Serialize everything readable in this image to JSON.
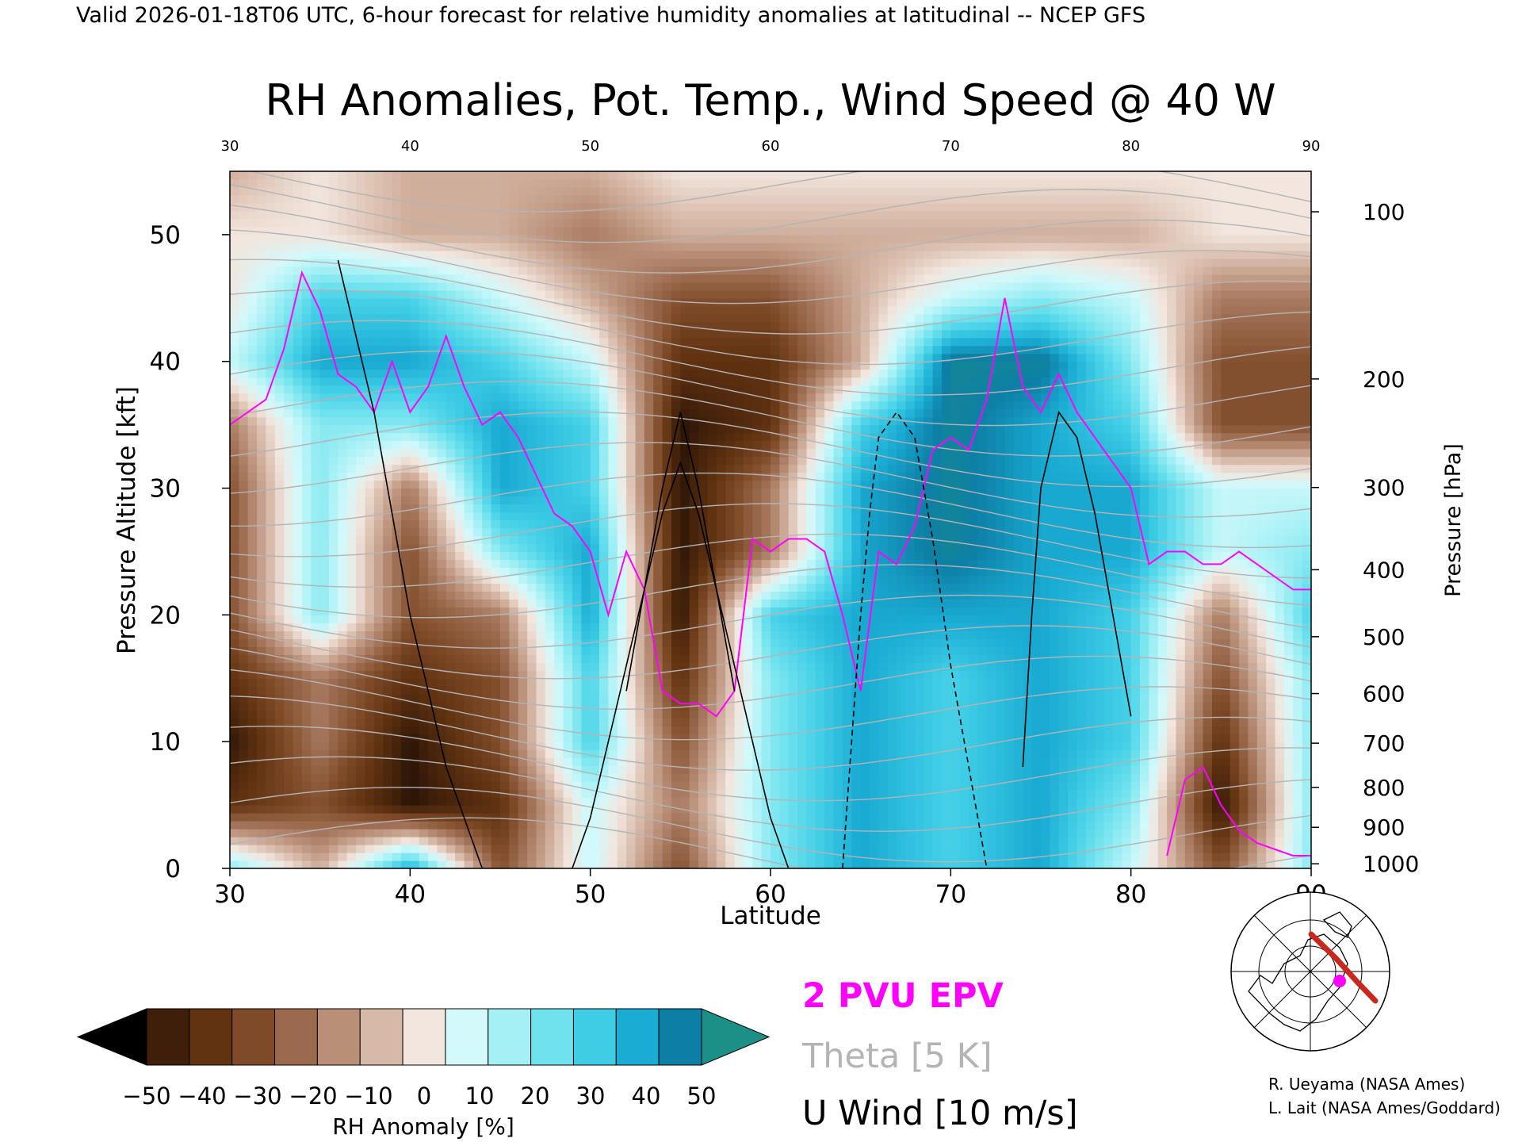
{
  "header": "Valid 2026-01-18T06 UTC, 6-hour forecast for relative humidity anomalies at latitudinal -- NCEP GFS",
  "chart_data": {
    "type": "heatmap",
    "title": "RH Anomalies, Pot. Temp., Wind Speed @ 40 W",
    "xlabel": "Latitude",
    "ylabel": "Pressure Altitude [kft]",
    "ylabel_right": "Pressure [hPa]",
    "xlim": [
      30,
      90
    ],
    "ylim": [
      0,
      55
    ],
    "x_ticks": [
      "30",
      "40",
      "50",
      "60",
      "70",
      "80",
      "90"
    ],
    "x_ticks_top": [
      "30",
      "40",
      "50",
      "60",
      "70",
      "80",
      "90"
    ],
    "y_ticks": [
      {
        "v": 0,
        "label": "0"
      },
      {
        "v": 10,
        "label": "10"
      },
      {
        "v": 20,
        "label": "20"
      },
      {
        "v": 30,
        "label": "30"
      },
      {
        "v": 40,
        "label": "40"
      },
      {
        "v": 50,
        "label": "50"
      }
    ],
    "pressure_ticks": [
      {
        "p": 100,
        "label": "100"
      },
      {
        "p": 200,
        "label": "200"
      },
      {
        "p": 300,
        "label": "300"
      },
      {
        "p": 400,
        "label": "400"
      },
      {
        "p": 500,
        "label": "500"
      },
      {
        "p": 600,
        "label": "600"
      },
      {
        "p": 700,
        "label": "700"
      },
      {
        "p": 800,
        "label": "800"
      },
      {
        "p": 900,
        "label": "900"
      },
      {
        "p": 1000,
        "label": "1000"
      }
    ],
    "rh_field": {
      "unit": "%",
      "lat": [
        30,
        35,
        40,
        45,
        50,
        55,
        60,
        65,
        70,
        75,
        80,
        85,
        90
      ],
      "alt": [
        0,
        5,
        10,
        15,
        20,
        25,
        30,
        35,
        40,
        45,
        50,
        55
      ],
      "values": [
        [
          20,
          -10,
          40,
          -30,
          10,
          -30,
          20,
          40,
          30,
          40,
          10,
          -30,
          20
        ],
        [
          -40,
          -30,
          -50,
          -40,
          10,
          -20,
          20,
          40,
          30,
          40,
          20,
          -50,
          20
        ],
        [
          -50,
          -20,
          -50,
          -30,
          30,
          -30,
          20,
          40,
          30,
          40,
          30,
          -40,
          20
        ],
        [
          -40,
          -20,
          -40,
          -30,
          30,
          -40,
          20,
          40,
          30,
          40,
          30,
          -30,
          20
        ],
        [
          -30,
          20,
          -30,
          -20,
          40,
          -50,
          30,
          40,
          40,
          40,
          30,
          -20,
          30
        ],
        [
          -30,
          20,
          -30,
          20,
          40,
          -50,
          -20,
          40,
          50,
          40,
          40,
          10,
          20
        ],
        [
          -30,
          20,
          -20,
          40,
          30,
          -50,
          -20,
          40,
          50,
          40,
          40,
          10,
          10
        ],
        [
          -20,
          20,
          20,
          40,
          30,
          -50,
          -40,
          30,
          50,
          40,
          30,
          -30,
          -30
        ],
        [
          10,
          40,
          40,
          30,
          10,
          -40,
          -40,
          -10,
          50,
          50,
          20,
          -30,
          -30
        ],
        [
          0,
          30,
          30,
          10,
          -10,
          -30,
          -30,
          -10,
          10,
          20,
          10,
          -20,
          -20
        ],
        [
          0,
          0,
          -10,
          -10,
          -20,
          -10,
          -10,
          -10,
          -10,
          -10,
          -10,
          0,
          0
        ],
        [
          -10,
          0,
          -10,
          -10,
          -10,
          0,
          0,
          0,
          0,
          0,
          0,
          0,
          0
        ]
      ]
    },
    "colorbar": {
      "label": "RH Anomaly [%]",
      "tick_labels": [
        "−50",
        "−40",
        "−30",
        "−20",
        "−10",
        "0",
        "10",
        "20",
        "30",
        "40",
        "50"
      ],
      "colors": [
        "#000000",
        "#3f1f0a",
        "#613311",
        "#7e4a28",
        "#9b6a4d",
        "#b98f78",
        "#d7b9a8",
        "#f2e6de",
        "#d3f9fb",
        "#a4f0f5",
        "#6fe2ee",
        "#3fcde6",
        "#1aacd3",
        "#0d7fa6",
        "#1c8f86"
      ]
    },
    "legend": [
      {
        "label": "2 PVU EPV",
        "color": "#ff00ff"
      },
      {
        "label": "Theta [5 K]",
        "color": "#b4b4b4"
      },
      {
        "label": "U Wind [10 m/s]",
        "color": "#000000"
      }
    ],
    "series": [
      {
        "name": "2 PVU EPV",
        "type": "line",
        "points": [
          [
            30,
            35
          ],
          [
            31,
            36
          ],
          [
            32,
            37
          ],
          [
            33,
            41
          ],
          [
            34,
            47
          ],
          [
            35,
            44
          ],
          [
            36,
            39
          ],
          [
            37,
            38
          ],
          [
            38,
            36
          ],
          [
            39,
            40
          ],
          [
            40,
            36
          ],
          [
            41,
            38
          ],
          [
            42,
            42
          ],
          [
            43,
            38
          ],
          [
            44,
            35
          ],
          [
            45,
            36
          ],
          [
            46,
            34
          ],
          [
            47,
            31
          ],
          [
            48,
            28
          ],
          [
            49,
            27
          ],
          [
            50,
            25
          ],
          [
            51,
            20
          ],
          [
            52,
            25
          ],
          [
            53,
            22
          ],
          [
            54,
            14
          ],
          [
            55,
            13
          ],
          [
            56,
            13
          ],
          [
            57,
            12
          ],
          [
            58,
            14
          ],
          [
            59,
            26
          ],
          [
            60,
            25
          ],
          [
            61,
            26
          ],
          [
            62,
            26
          ],
          [
            63,
            25
          ],
          [
            64,
            20
          ],
          [
            65,
            14
          ],
          [
            66,
            25
          ],
          [
            67,
            24
          ],
          [
            68,
            27
          ],
          [
            69,
            33
          ],
          [
            70,
            34
          ],
          [
            71,
            33
          ],
          [
            72,
            37
          ],
          [
            73,
            45
          ],
          [
            74,
            38
          ],
          [
            75,
            36
          ],
          [
            76,
            39
          ],
          [
            77,
            36
          ],
          [
            78,
            34
          ],
          [
            79,
            32
          ],
          [
            80,
            30
          ],
          [
            81,
            24
          ],
          [
            82,
            25
          ],
          [
            83,
            25
          ],
          [
            84,
            24
          ],
          [
            85,
            24
          ],
          [
            86,
            25
          ],
          [
            87,
            24
          ],
          [
            88,
            23
          ],
          [
            89,
            22
          ],
          [
            90,
            22
          ]
        ]
      },
      {
        "name": "2 PVU EPV (low)",
        "type": "line",
        "points": [
          [
            82,
            1
          ],
          [
            83,
            7
          ],
          [
            84,
            8
          ],
          [
            85,
            5
          ],
          [
            86,
            3
          ],
          [
            87,
            2
          ],
          [
            88,
            1.5
          ],
          [
            89,
            1
          ],
          [
            90,
            1
          ]
        ]
      },
      {
        "name": "U Wind 10 m/s",
        "type": "line",
        "points": [
          [
            36,
            48
          ],
          [
            37,
            42
          ],
          [
            38,
            36
          ],
          [
            39,
            28
          ],
          [
            40,
            20
          ],
          [
            41,
            14
          ],
          [
            42,
            8
          ],
          [
            43,
            4
          ],
          [
            44,
            0
          ]
        ]
      },
      {
        "name": "U Wind 30 m/s",
        "type": "line",
        "points": [
          [
            49,
            0
          ],
          [
            50,
            4
          ],
          [
            51,
            10
          ],
          [
            52,
            16
          ],
          [
            53,
            22
          ],
          [
            54,
            28
          ],
          [
            55,
            32
          ],
          [
            56,
            28
          ],
          [
            57,
            22
          ],
          [
            58,
            16
          ],
          [
            59,
            10
          ],
          [
            60,
            4
          ],
          [
            61,
            0
          ]
        ]
      },
      {
        "name": "U Wind 50 m/s",
        "type": "line",
        "points": [
          [
            52,
            14
          ],
          [
            53,
            22
          ],
          [
            54,
            30
          ],
          [
            55,
            36
          ],
          [
            56,
            30
          ],
          [
            57,
            22
          ],
          [
            58,
            14
          ]
        ]
      },
      {
        "name": "U Wind -10 m/s",
        "type": "line",
        "points": [
          [
            64,
            0
          ],
          [
            64.5,
            10
          ],
          [
            65,
            20
          ],
          [
            65.5,
            28
          ],
          [
            66,
            34
          ],
          [
            67,
            36
          ],
          [
            68,
            34
          ],
          [
            69,
            26
          ],
          [
            70,
            16
          ],
          [
            71,
            8
          ],
          [
            72,
            0
          ]
        ]
      },
      {
        "name": "U Wind 30 m/s (north)",
        "type": "line",
        "points": [
          [
            74,
            8
          ],
          [
            74.5,
            20
          ],
          [
            75,
            30
          ],
          [
            76,
            36
          ],
          [
            77,
            34
          ],
          [
            78,
            28
          ],
          [
            79,
            20
          ],
          [
            80,
            12
          ]
        ]
      }
    ]
  },
  "locator_map": {
    "alt": "Locator map",
    "track_color": "#c8281e",
    "marker_color": "#ff00ff"
  },
  "credits": [
    "R. Ueyama (NASA Ames)",
    "L. Lait (NASA Ames/Goddard)"
  ]
}
